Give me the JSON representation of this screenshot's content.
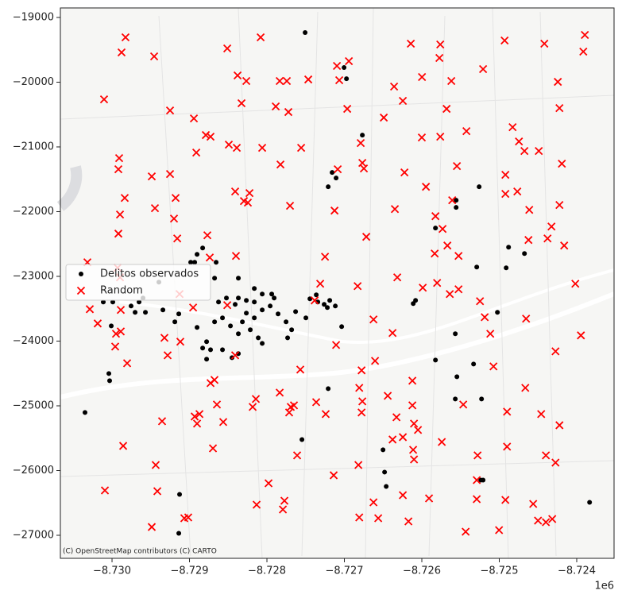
{
  "chart_data": {
    "type": "scatter",
    "x_offset_label": "1e6",
    "attribution": "(C) OpenStreetMap contributors (C) CARTO",
    "legend": "center left",
    "xlim": [
      -8730667,
      -8723518
    ],
    "ylim": [
      -27356,
      -18853
    ],
    "xticks": [
      {
        "value": -8730000,
        "label": "−8.730"
      },
      {
        "value": -8729000,
        "label": "−8.729"
      },
      {
        "value": -8728000,
        "label": "−8.728"
      },
      {
        "value": -8727000,
        "label": "−8.727"
      },
      {
        "value": -8726000,
        "label": "−8.726"
      },
      {
        "value": -8725000,
        "label": "−8.725"
      },
      {
        "value": -8724000,
        "label": "−8.724"
      }
    ],
    "yticks": [
      {
        "value": -19000,
        "label": "−19000"
      },
      {
        "value": -20000,
        "label": "−20000"
      },
      {
        "value": -21000,
        "label": "−21000"
      },
      {
        "value": -22000,
        "label": "−22000"
      },
      {
        "value": -23000,
        "label": "−23000"
      },
      {
        "value": -24000,
        "label": "−24000"
      },
      {
        "value": -25000,
        "label": "−25000"
      },
      {
        "value": -26000,
        "label": "−26000"
      },
      {
        "value": -27000,
        "label": "−27000"
      }
    ],
    "series": [
      {
        "name": "Delitos observados",
        "color": "#000000",
        "marker": "o",
        "x": [
          -8727507,
          -8727004,
          -8726973,
          -8726768,
          -8727158,
          -8727209,
          -8727107,
          -8725260,
          -8725557,
          -8725557,
          -8725824,
          -8724880,
          -8724675,
          -8724911,
          -8725291,
          -8726111,
          -8726081,
          -8725024,
          -8725568,
          -8725824,
          -8725332,
          -8725547,
          -8725229,
          -8725568,
          -8727209,
          -8727548,
          -8730349,
          -8730041,
          -8730031,
          -8729128,
          -8729138,
          -8726501,
          -8726481,
          -8726460,
          -8725239,
          -8725209,
          -8723834,
          -8727220,
          -8727117,
          -8727035,
          -8727189,
          -8727363,
          -8727445,
          -8727343,
          -8727261,
          -8728163,
          -8728266,
          -8728369,
          -8728410,
          -8728266,
          -8728163,
          -8728061,
          -8727958,
          -8728317,
          -8728215,
          -8728112,
          -8728061,
          -8728369,
          -8728471,
          -8728574,
          -8728625,
          -8728523,
          -8728163,
          -8727907,
          -8727856,
          -8727753,
          -8727681,
          -8727733,
          -8728676,
          -8728728,
          -8728830,
          -8728902,
          -8729138,
          -8729189,
          -8729343,
          -8729651,
          -8729600,
          -8729754,
          -8729702,
          -8728779,
          -8728574,
          -8728451,
          -8728369,
          -8728830,
          -8728902,
          -8728933,
          -8728984,
          -8729395,
          -8728656,
          -8730113,
          -8729990,
          -8730010,
          -8729569,
          -8728779,
          -8728676,
          -8728369,
          -8727497,
          -8727630,
          -8727938,
          -8728061
        ],
        "values": [
          -19233,
          -19774,
          -19946,
          -20817,
          -21395,
          -21616,
          -21481,
          -21616,
          -21824,
          -21935,
          -22254,
          -22549,
          -22647,
          -22868,
          -22856,
          -23421,
          -23372,
          -23556,
          -23887,
          -24293,
          -24354,
          -24551,
          -24894,
          -24894,
          -24735,
          -25521,
          -25103,
          -24501,
          -24612,
          -26368,
          -26970,
          -25680,
          -26024,
          -26245,
          -26147,
          -26147,
          -26491,
          -23482,
          -23458,
          -23777,
          -23372,
          -23286,
          -23347,
          -23396,
          -23433,
          -23187,
          -23372,
          -23335,
          -23433,
          -23568,
          -23642,
          -23519,
          -23458,
          -23703,
          -23826,
          -23949,
          -24035,
          -23887,
          -23765,
          -23642,
          -23396,
          -23335,
          -23396,
          -23335,
          -23580,
          -23703,
          -23826,
          -23949,
          -23703,
          -24133,
          -24108,
          -23789,
          -23580,
          -23703,
          -23519,
          -23396,
          -23335,
          -23458,
          -23556,
          -24010,
          -24133,
          -24256,
          -24194,
          -22561,
          -22659,
          -22782,
          -22782,
          -23089,
          -22782,
          -23396,
          -23396,
          -23765,
          -23556,
          -24280,
          -23028,
          -23028,
          -23642,
          -23544,
          -23273,
          -23273
        ]
      },
      {
        "name": "Random",
        "color": "#ff0000",
        "marker": "x",
        "x": [
          -8729826,
          -8729877,
          -8729456,
          -8728081,
          -8730103,
          -8729251,
          -8728512,
          -8728379,
          -8728266,
          -8728328,
          -8728943,
          -8728912,
          -8728789,
          -8728728,
          -8728492,
          -8728389,
          -8728061,
          -8727886,
          -8727835,
          -8727743,
          -8727723,
          -8727466,
          -8727096,
          -8726942,
          -8727558,
          -8727825,
          -8727702,
          -8728410,
          -8728225,
          -8728297,
          -8728246,
          -8729179,
          -8729200,
          -8729908,
          -8729918,
          -8729836,
          -8729897,
          -8729918,
          -8729487,
          -8729446,
          -8729251,
          -8729158,
          -8728769,
          -8728400,
          -8728738,
          -8729928,
          -8729897,
          -8730318,
          -8730287,
          -8730185,
          -8729949,
          -8729887,
          -8729887,
          -8729959,
          -8729805,
          -8729128,
          -8728953,
          -8728512,
          -8729323,
          -8729282,
          -8729118,
          -8728410,
          -8728728,
          -8728677,
          -8729354,
          -8728933,
          -8728871,
          -8728902,
          -8728646,
          -8728564,
          -8728697,
          -8729856,
          -8728143,
          -8728184,
          -8727835,
          -8727692,
          -8727713,
          -8727651,
          -8727610,
          -8727364,
          -8727241,
          -8729436,
          -8729415,
          -8730092,
          -8729487,
          -8729067,
          -8729016,
          -8728133,
          -8727979,
          -8727774,
          -8727794,
          -8727138,
          -8726819,
          -8726624,
          -8726808,
          -8726563,
          -8726245,
          -8726173,
          -8725907,
          -8725434,
          -8725291,
          -8725291,
          -8724921,
          -8725003,
          -8724562,
          -8724500,
          -8724398,
          -8724316,
          -8724398,
          -8724274,
          -8724459,
          -8724223,
          -8724900,
          -8724900,
          -8725280,
          -8725465,
          -8724664,
          -8725075,
          -8725116,
          -8725188,
          -8725249,
          -8724654,
          -8724274,
          -8723946,
          -8724018,
          -8724162,
          -8724377,
          -8724326,
          -8724223,
          -8724623,
          -8724613,
          -8724192,
          -8724490,
          -8724675,
          -8724746,
          -8724828,
          -8724921,
          -8724921,
          -8724767,
          -8724223,
          -8724244,
          -8724418,
          -8723895,
          -8723915,
          -8724931,
          -8725209,
          -8725424,
          -8725680,
          -8725773,
          -8725762,
          -8725619,
          -8725998,
          -8726142,
          -8726358,
          -8726245,
          -8726491,
          -8726000,
          -8725762,
          -8725547,
          -8726224,
          -8725947,
          -8725608,
          -8725824,
          -8725732,
          -8725670,
          -8725834,
          -8725526,
          -8725803,
          -8725639,
          -8725526,
          -8726348,
          -8726717,
          -8726748,
          -8727086,
          -8726789,
          -8726768,
          -8726963,
          -8727066,
          -8727250,
          -8727127,
          -8726829,
          -8726317,
          -8725988,
          -8727312,
          -8727384,
          -8726624,
          -8726378,
          -8726778,
          -8726604,
          -8727107,
          -8727569,
          -8726808,
          -8726768,
          -8726778,
          -8726440,
          -8726327,
          -8726122,
          -8726101,
          -8726050,
          -8726245,
          -8726378,
          -8726112,
          -8726101,
          -8725742,
          -8726122
        ],
        "values": [
          -19307,
          -19540,
          -19602,
          -19307,
          -20265,
          -20437,
          -19479,
          -19896,
          -19982,
          -20326,
          -20560,
          -21088,
          -20817,
          -20842,
          -20965,
          -21014,
          -21014,
          -20375,
          -19982,
          -19982,
          -20461,
          -19958,
          -19749,
          -19675,
          -21014,
          -21272,
          -21910,
          -21689,
          -21714,
          -21837,
          -21861,
          -21788,
          -22107,
          -21174,
          -21345,
          -21788,
          -22045,
          -22340,
          -21456,
          -21947,
          -21419,
          -22414,
          -22365,
          -22684,
          -22709,
          -22868,
          -23016,
          -22782,
          -23507,
          -23728,
          -23887,
          -23519,
          -23851,
          -24084,
          -24342,
          -23273,
          -23482,
          -23445,
          -23949,
          -24219,
          -24010,
          -24219,
          -24649,
          -24600,
          -25238,
          -25165,
          -25128,
          -25275,
          -24980,
          -25250,
          -25656,
          -25619,
          -24894,
          -25017,
          -24796,
          -25017,
          -25103,
          -24993,
          -25766,
          -24944,
          -25128,
          -25914,
          -26319,
          -26307,
          -26872,
          -26736,
          -26724,
          -26528,
          -26196,
          -26466,
          -26601,
          -26073,
          -25914,
          -26491,
          -26724,
          -26736,
          -26380,
          -26786,
          -26429,
          -26945,
          -26147,
          -26442,
          -26454,
          -26921,
          -26515,
          -26773,
          -26798,
          -26749,
          -25766,
          -25877,
          -25128,
          -25300,
          -25631,
          -25091,
          -25766,
          -24980,
          -24722,
          -24391,
          -23887,
          -23630,
          -23384,
          -23654,
          -24158,
          -23912,
          -23114,
          -22524,
          -22414,
          -22230,
          -21898,
          -22438,
          -21972,
          -21259,
          -21063,
          -21063,
          -20916,
          -20695,
          -21431,
          -21726,
          -21689,
          -20400,
          -19995,
          -19405,
          -19270,
          -19528,
          -19356,
          -19798,
          -20756,
          -20412,
          -19626,
          -19418,
          -19982,
          -19921,
          -19405,
          -20068,
          -20289,
          -20547,
          -20854,
          -20842,
          -21296,
          -21394,
          -21616,
          -21824,
          -22070,
          -22267,
          -22524,
          -22647,
          -22684,
          -23102,
          -23273,
          -23200,
          -21960,
          -22389,
          -21333,
          -21345,
          -20940,
          -21247,
          -20412,
          -19970,
          -22696,
          -21984,
          -23151,
          -23016,
          -23175,
          -23114,
          -23372,
          -23666,
          -23875,
          -24452,
          -24305,
          -24060,
          -24440,
          -24722,
          -24931,
          -25103,
          -24845,
          -25177,
          -24993,
          -25275,
          -25373,
          -25484,
          -25521,
          -25680,
          -25828,
          -25558,
          -24612
        ]
      }
    ]
  }
}
